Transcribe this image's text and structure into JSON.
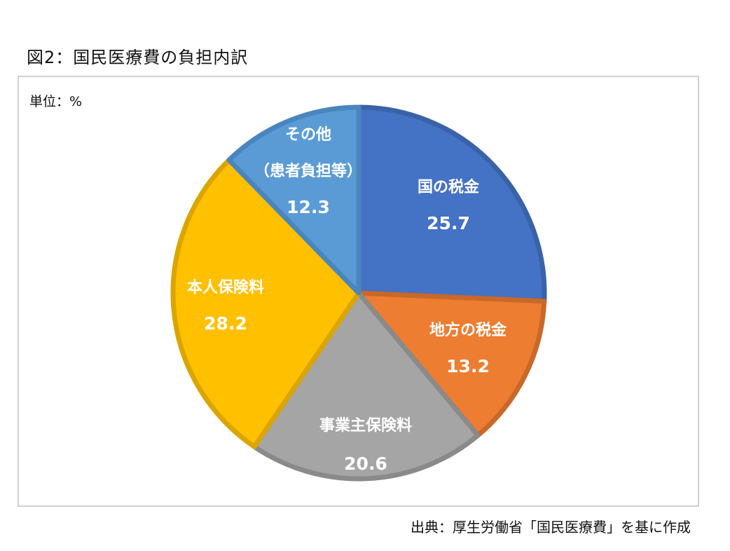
{
  "figure": {
    "title": "図2：国民医療費の負担内訳",
    "unit_label": "単位：%",
    "source": "出典：厚生労働省「国民医療費」を基に作成"
  },
  "chart_data": {
    "type": "pie",
    "title": "図2：国民医療費の負担内訳",
    "unit": "%",
    "start_angle_deg": 0,
    "direction": "clockwise",
    "slices": [
      {
        "label": "国の税金",
        "value": 25.7,
        "color": "#4472c4",
        "edge": "#3a62a8"
      },
      {
        "label": "地方の税金",
        "value": 13.2,
        "color": "#ed7d31",
        "edge": "#c96828"
      },
      {
        "label": "事業主保険料",
        "value": 20.6,
        "color": "#a5a5a5",
        "edge": "#8a8a8a"
      },
      {
        "label": "本人保険料",
        "value": 28.2,
        "color": "#ffc000",
        "edge": "#dba500"
      },
      {
        "label": "その他|（患者負担等）",
        "value": 12.3,
        "color": "#5b9bd5",
        "edge": "#4a86bd"
      }
    ]
  }
}
